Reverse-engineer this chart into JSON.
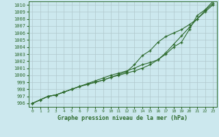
{
  "x": [
    0,
    1,
    2,
    3,
    4,
    5,
    6,
    7,
    8,
    9,
    10,
    11,
    12,
    13,
    14,
    15,
    16,
    17,
    18,
    19,
    20,
    21,
    22,
    23
  ],
  "line1": [
    996.0,
    996.5,
    997.0,
    997.2,
    997.6,
    998.0,
    998.4,
    998.7,
    999.0,
    999.3,
    999.7,
    1000.0,
    1000.3,
    1000.6,
    1001.0,
    1001.5,
    1002.2,
    1003.2,
    1004.4,
    1005.6,
    1006.8,
    1008.0,
    1009.2,
    1010.2
  ],
  "line2": [
    996.0,
    996.5,
    997.0,
    997.2,
    997.6,
    998.0,
    998.4,
    998.7,
    999.0,
    999.3,
    999.7,
    1000.1,
    1000.5,
    1001.5,
    1002.8,
    1003.5,
    1004.7,
    1005.5,
    1006.0,
    1006.5,
    1007.2,
    1008.0,
    1009.0,
    1010.0
  ],
  "line3": [
    996.0,
    996.5,
    997.0,
    997.2,
    997.6,
    998.0,
    998.4,
    998.8,
    999.2,
    999.6,
    1000.0,
    1000.3,
    1000.6,
    1001.0,
    1001.5,
    1001.8,
    1002.2,
    1003.0,
    1004.0,
    1004.7,
    1006.5,
    1008.5,
    1009.3,
    1010.5
  ],
  "line_color": "#2d6a2d",
  "bg_color": "#cce8ee",
  "grid_color": "#b0c8cc",
  "xlabel": "Graphe pression niveau de la mer (hPa)",
  "ylim": [
    995.5,
    1010.5
  ],
  "xlim": [
    -0.5,
    23.5
  ],
  "yticks": [
    996,
    997,
    998,
    999,
    1000,
    1001,
    1002,
    1003,
    1004,
    1005,
    1006,
    1007,
    1008,
    1009,
    1010
  ],
  "xticks": [
    0,
    1,
    2,
    3,
    4,
    5,
    6,
    7,
    8,
    9,
    10,
    11,
    12,
    13,
    14,
    15,
    16,
    17,
    18,
    19,
    20,
    21,
    22,
    23
  ]
}
